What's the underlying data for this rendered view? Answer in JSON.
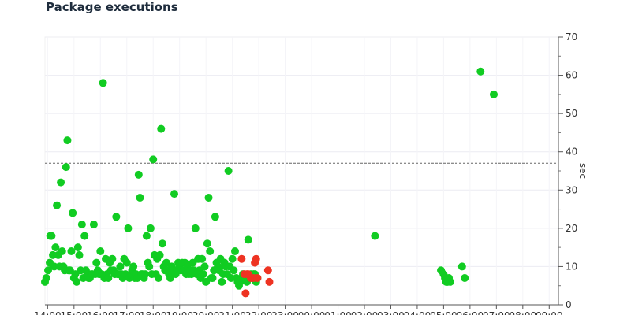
{
  "title": "Package executions",
  "chart_data": {
    "type": "scatter",
    "title": "Package executions",
    "ylabel": "sec",
    "ylim": [
      0,
      70
    ],
    "yticks": [
      0,
      10,
      20,
      30,
      40,
      50,
      60,
      70
    ],
    "threshold": 37,
    "grid": true,
    "xlim": [
      13.9,
      33.35
    ],
    "xticks": [
      {
        "v": 14,
        "label": "14:00"
      },
      {
        "v": 15,
        "label": "15:00"
      },
      {
        "v": 16,
        "label": "16:00"
      },
      {
        "v": 17,
        "label": "17:00"
      },
      {
        "v": 18,
        "label": "18:00"
      },
      {
        "v": 19,
        "label": "19:00"
      },
      {
        "v": 20,
        "label": "20:00"
      },
      {
        "v": 21,
        "label": "21:00"
      },
      {
        "v": 22,
        "label": "22:00"
      },
      {
        "v": 23,
        "label": "23:00"
      },
      {
        "v": 24,
        "label": "00:00"
      },
      {
        "v": 25,
        "label": "01:00"
      },
      {
        "v": 26,
        "label": "02:00"
      },
      {
        "v": 27,
        "label": "03:00"
      },
      {
        "v": 28,
        "label": "04:00"
      },
      {
        "v": 29,
        "label": "05:00"
      },
      {
        "v": 30,
        "label": "06:00"
      },
      {
        "v": 31,
        "label": "07:00"
      },
      {
        "v": 32,
        "label": "08:00"
      },
      {
        "v": 33,
        "label": "09:00"
      }
    ],
    "series": [
      {
        "status": "success",
        "color": "#11cc22",
        "points": [
          [
            13.9,
            6
          ],
          [
            13.95,
            7
          ],
          [
            14.02,
            9
          ],
          [
            14.08,
            11
          ],
          [
            14.1,
            18
          ],
          [
            14.15,
            18
          ],
          [
            14.2,
            13
          ],
          [
            14.25,
            10
          ],
          [
            14.3,
            15
          ],
          [
            14.35,
            26
          ],
          [
            14.4,
            13
          ],
          [
            14.45,
            10
          ],
          [
            14.5,
            32
          ],
          [
            14.55,
            14
          ],
          [
            14.6,
            10
          ],
          [
            14.65,
            9
          ],
          [
            14.7,
            36
          ],
          [
            14.75,
            43
          ],
          [
            14.8,
            9
          ],
          [
            14.85,
            9
          ],
          [
            14.9,
            14
          ],
          [
            14.95,
            24
          ],
          [
            15.0,
            7
          ],
          [
            15.05,
            8
          ],
          [
            15.1,
            6
          ],
          [
            15.15,
            15
          ],
          [
            15.2,
            13
          ],
          [
            15.25,
            9
          ],
          [
            15.3,
            21
          ],
          [
            15.35,
            7
          ],
          [
            15.4,
            18
          ],
          [
            15.45,
            9
          ],
          [
            15.5,
            8
          ],
          [
            15.55,
            7
          ],
          [
            15.6,
            7
          ],
          [
            15.65,
            8
          ],
          [
            15.7,
            8
          ],
          [
            15.75,
            21
          ],
          [
            15.8,
            8
          ],
          [
            15.85,
            11
          ],
          [
            15.9,
            9
          ],
          [
            15.95,
            8
          ],
          [
            16.0,
            14
          ],
          [
            16.05,
            8
          ],
          [
            16.1,
            58
          ],
          [
            16.15,
            7
          ],
          [
            16.2,
            12
          ],
          [
            16.25,
            8
          ],
          [
            16.3,
            7
          ],
          [
            16.35,
            11
          ],
          [
            16.4,
            9
          ],
          [
            16.45,
            12
          ],
          [
            16.5,
            9
          ],
          [
            16.55,
            8
          ],
          [
            16.6,
            23
          ],
          [
            16.65,
            8
          ],
          [
            16.7,
            8
          ],
          [
            16.75,
            10
          ],
          [
            16.8,
            8
          ],
          [
            16.85,
            7
          ],
          [
            16.9,
            12
          ],
          [
            16.95,
            8
          ],
          [
            17.0,
            11
          ],
          [
            17.05,
            20
          ],
          [
            17.1,
            7
          ],
          [
            17.15,
            8
          ],
          [
            17.2,
            9
          ],
          [
            17.25,
            10
          ],
          [
            17.3,
            7
          ],
          [
            17.35,
            8
          ],
          [
            17.4,
            7
          ],
          [
            17.45,
            34
          ],
          [
            17.5,
            28
          ],
          [
            17.55,
            8
          ],
          [
            17.6,
            8
          ],
          [
            17.65,
            7
          ],
          [
            17.7,
            8
          ],
          [
            17.75,
            18
          ],
          [
            17.8,
            11
          ],
          [
            17.85,
            10
          ],
          [
            17.9,
            20
          ],
          [
            17.95,
            8
          ],
          [
            18.0,
            38
          ],
          [
            18.05,
            13
          ],
          [
            18.1,
            8
          ],
          [
            18.15,
            12
          ],
          [
            18.2,
            7
          ],
          [
            18.25,
            13
          ],
          [
            18.3,
            46
          ],
          [
            18.35,
            16
          ],
          [
            18.4,
            10
          ],
          [
            18.45,
            9
          ],
          [
            18.5,
            11
          ],
          [
            18.55,
            9
          ],
          [
            18.6,
            8
          ],
          [
            18.65,
            7
          ],
          [
            18.7,
            10
          ],
          [
            18.75,
            9
          ],
          [
            18.8,
            29
          ],
          [
            18.85,
            8
          ],
          [
            18.9,
            9
          ],
          [
            18.95,
            11
          ],
          [
            19.0,
            10
          ],
          [
            19.05,
            9
          ],
          [
            19.1,
            11
          ],
          [
            19.15,
            9
          ],
          [
            19.2,
            11
          ],
          [
            19.25,
            8
          ],
          [
            19.3,
            10
          ],
          [
            19.35,
            8
          ],
          [
            19.4,
            9
          ],
          [
            19.45,
            8
          ],
          [
            19.5,
            11
          ],
          [
            19.55,
            9
          ],
          [
            19.6,
            20
          ],
          [
            19.65,
            8
          ],
          [
            19.7,
            12
          ],
          [
            19.75,
            9
          ],
          [
            19.8,
            7
          ],
          [
            19.85,
            12
          ],
          [
            19.9,
            8
          ],
          [
            19.95,
            10
          ],
          [
            20.0,
            6
          ],
          [
            20.05,
            16
          ],
          [
            20.1,
            28
          ],
          [
            20.15,
            14
          ],
          [
            20.2,
            7
          ],
          [
            20.25,
            7
          ],
          [
            20.3,
            9
          ],
          [
            20.35,
            23
          ],
          [
            20.4,
            11
          ],
          [
            20.45,
            10
          ],
          [
            20.5,
            9
          ],
          [
            20.55,
            12
          ],
          [
            20.6,
            6
          ],
          [
            20.65,
            8
          ],
          [
            20.7,
            11
          ],
          [
            20.75,
            10
          ],
          [
            20.8,
            8
          ],
          [
            20.85,
            35
          ],
          [
            20.9,
            10
          ],
          [
            20.95,
            7
          ],
          [
            21.0,
            12
          ],
          [
            21.05,
            9
          ],
          [
            21.1,
            14
          ],
          [
            21.15,
            7
          ],
          [
            21.2,
            6
          ],
          [
            21.25,
            5
          ],
          [
            21.3,
            6
          ],
          [
            21.35,
            7
          ],
          [
            21.4,
            8
          ],
          [
            21.45,
            7
          ],
          [
            21.5,
            7
          ],
          [
            21.55,
            6
          ],
          [
            21.6,
            17
          ],
          [
            21.65,
            7
          ],
          [
            21.7,
            8
          ],
          [
            21.75,
            7
          ],
          [
            21.8,
            8
          ],
          [
            21.85,
            8
          ],
          [
            21.9,
            6
          ],
          [
            21.95,
            7
          ],
          [
            26.4,
            18
          ],
          [
            28.9,
            9
          ],
          [
            29.0,
            8
          ],
          [
            29.05,
            7
          ],
          [
            29.1,
            6
          ],
          [
            29.15,
            6
          ],
          [
            29.2,
            7
          ],
          [
            29.25,
            6
          ],
          [
            29.7,
            10
          ],
          [
            29.8,
            7
          ],
          [
            30.4,
            61
          ],
          [
            30.9,
            55
          ]
        ]
      },
      {
        "status": "failure",
        "color": "#ee3322",
        "points": [
          [
            21.35,
            12
          ],
          [
            21.45,
            8
          ],
          [
            21.5,
            3
          ],
          [
            21.55,
            8
          ],
          [
            21.6,
            8
          ],
          [
            21.7,
            7
          ],
          [
            21.8,
            7
          ],
          [
            21.85,
            11
          ],
          [
            21.9,
            12
          ],
          [
            21.95,
            7
          ],
          [
            22.35,
            9
          ],
          [
            22.4,
            6
          ]
        ]
      }
    ]
  }
}
